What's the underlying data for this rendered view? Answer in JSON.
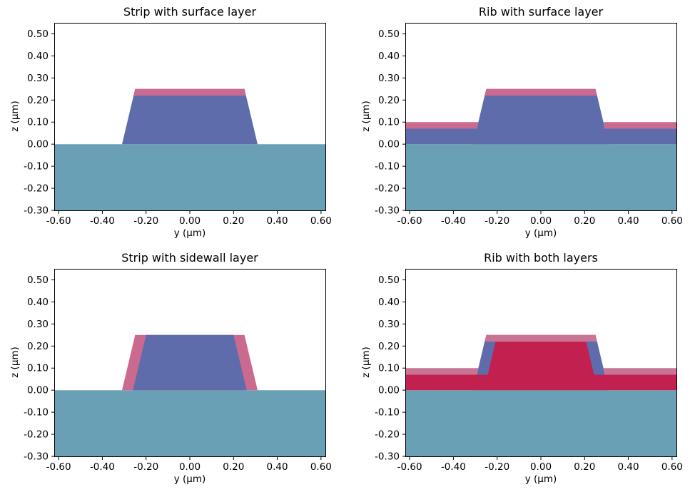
{
  "figure": {
    "background": "#ffffff",
    "colors": {
      "substrate": "#69a0b6",
      "core": "#5e6cac",
      "layer_pink": "#ca6a8e",
      "layer_crimson": "#c22150",
      "layer_pink_light": "#c97494",
      "axis": "#000000",
      "text": "#000000"
    }
  },
  "chart_data": [
    {
      "type": "area",
      "id": "strip-surface-layer",
      "title": "Strip with surface layer",
      "xlabel": "y (µm)",
      "ylabel": "z (µm)",
      "xlim": [
        -0.62,
        0.62
      ],
      "ylim": [
        -0.3,
        0.55
      ],
      "grid": false,
      "legend": "none",
      "xticks": [
        -0.6,
        -0.4,
        -0.2,
        0.0,
        0.2,
        0.4,
        0.6
      ],
      "xtick_labels": [
        "-0.60",
        "-0.40",
        "-0.20",
        "0.00",
        "0.20",
        "0.40",
        "0.60"
      ],
      "yticks": [
        0.5,
        0.4,
        0.3,
        0.2,
        0.1,
        0.0,
        -0.1,
        -0.2,
        -0.3
      ],
      "ytick_labels": [
        "0.50",
        "0.40",
        "0.30",
        "0.20",
        "0.10",
        "0.00",
        "-0.10",
        "-0.20",
        "-0.30"
      ],
      "regions": [
        {
          "name": "substrate",
          "color": "substrate",
          "points": [
            [
              -0.62,
              -0.3
            ],
            [
              0.62,
              -0.3
            ],
            [
              0.62,
              0.0
            ],
            [
              -0.62,
              0.0
            ]
          ]
        },
        {
          "name": "core",
          "color": "core",
          "points": [
            [
              -0.31,
              0.0
            ],
            [
              0.31,
              0.0
            ],
            [
              0.25,
              0.25
            ],
            [
              -0.25,
              0.25
            ]
          ]
        },
        {
          "name": "surface-layer-top",
          "color": "layer_pink",
          "points": [
            [
              -0.2572,
              0.22
            ],
            [
              0.2572,
              0.22
            ],
            [
              0.25,
              0.25
            ],
            [
              -0.25,
              0.25
            ]
          ]
        }
      ]
    },
    {
      "type": "area",
      "id": "rib-surface-layer",
      "title": "Rib with surface layer",
      "xlabel": "y (µm)",
      "ylabel": "z (µm)",
      "xlim": [
        -0.62,
        0.62
      ],
      "ylim": [
        -0.3,
        0.55
      ],
      "grid": false,
      "legend": "none",
      "xticks": [
        -0.6,
        -0.4,
        -0.2,
        0.0,
        0.2,
        0.4,
        0.6
      ],
      "xtick_labels": [
        "-0.60",
        "-0.40",
        "-0.20",
        "0.00",
        "0.20",
        "0.40",
        "0.60"
      ],
      "yticks": [
        0.5,
        0.4,
        0.3,
        0.2,
        0.1,
        0.0,
        -0.1,
        -0.2,
        -0.3
      ],
      "ytick_labels": [
        "0.50",
        "0.40",
        "0.30",
        "0.20",
        "0.10",
        "0.00",
        "-0.10",
        "-0.20",
        "-0.30"
      ],
      "regions": [
        {
          "name": "substrate",
          "color": "substrate",
          "points": [
            [
              -0.62,
              -0.3
            ],
            [
              0.62,
              -0.3
            ],
            [
              0.62,
              0.0
            ],
            [
              -0.62,
              0.0
            ]
          ]
        },
        {
          "name": "slab",
          "color": "core",
          "points": [
            [
              -0.62,
              0.0
            ],
            [
              0.62,
              0.0
            ],
            [
              0.62,
              0.07
            ],
            [
              -0.62,
              0.07
            ]
          ]
        },
        {
          "name": "core",
          "color": "core",
          "points": [
            [
              -0.31,
              0.0
            ],
            [
              0.31,
              0.0
            ],
            [
              0.25,
              0.25
            ],
            [
              -0.25,
              0.25
            ]
          ]
        },
        {
          "name": "surface-layer-slab-left",
          "color": "layer_pink",
          "points": [
            [
              -0.62,
              0.07
            ],
            [
              -0.2932,
              0.07
            ],
            [
              -0.286,
              0.1
            ],
            [
              -0.62,
              0.1
            ]
          ]
        },
        {
          "name": "surface-layer-slab-right",
          "color": "layer_pink",
          "points": [
            [
              0.2932,
              0.07
            ],
            [
              0.62,
              0.07
            ],
            [
              0.62,
              0.1
            ],
            [
              0.286,
              0.1
            ]
          ]
        },
        {
          "name": "surface-layer-top",
          "color": "layer_pink",
          "points": [
            [
              -0.2572,
              0.22
            ],
            [
              0.2572,
              0.22
            ],
            [
              0.25,
              0.25
            ],
            [
              -0.25,
              0.25
            ]
          ]
        }
      ]
    },
    {
      "type": "area",
      "id": "strip-sidewall-layer",
      "title": "Strip with sidewall layer",
      "xlabel": "y (µm)",
      "ylabel": "z (µm)",
      "xlim": [
        -0.62,
        0.62
      ],
      "ylim": [
        -0.3,
        0.55
      ],
      "grid": false,
      "legend": "none",
      "xticks": [
        -0.6,
        -0.4,
        -0.2,
        0.0,
        0.2,
        0.4,
        0.6
      ],
      "xtick_labels": [
        "-0.60",
        "-0.40",
        "-0.20",
        "0.00",
        "0.20",
        "0.40",
        "0.60"
      ],
      "yticks": [
        0.5,
        0.4,
        0.3,
        0.2,
        0.1,
        0.0,
        -0.1,
        -0.2,
        -0.3
      ],
      "ytick_labels": [
        "0.50",
        "0.40",
        "0.30",
        "0.20",
        "0.10",
        "0.00",
        "-0.10",
        "-0.20",
        "-0.30"
      ],
      "regions": [
        {
          "name": "substrate",
          "color": "substrate",
          "points": [
            [
              -0.62,
              -0.3
            ],
            [
              0.62,
              -0.3
            ],
            [
              0.62,
              0.0
            ],
            [
              -0.62,
              0.0
            ]
          ]
        },
        {
          "name": "sidewall-layer",
          "color": "layer_pink",
          "points": [
            [
              -0.31,
              0.0
            ],
            [
              0.31,
              0.0
            ],
            [
              0.25,
              0.25
            ],
            [
              -0.25,
              0.25
            ]
          ]
        },
        {
          "name": "core",
          "color": "core",
          "points": [
            [
              -0.26,
              0.0
            ],
            [
              0.26,
              0.0
            ],
            [
              0.2,
              0.25
            ],
            [
              -0.2,
              0.25
            ]
          ]
        }
      ]
    },
    {
      "type": "area",
      "id": "rib-both-layers",
      "title": "Rib with both layers",
      "xlabel": "y (µm)",
      "ylabel": "z (µm)",
      "xlim": [
        -0.62,
        0.62
      ],
      "ylim": [
        -0.3,
        0.55
      ],
      "grid": false,
      "legend": "none",
      "xticks": [
        -0.6,
        -0.4,
        -0.2,
        0.0,
        0.2,
        0.4,
        0.6
      ],
      "xtick_labels": [
        "-0.60",
        "-0.40",
        "-0.20",
        "0.00",
        "0.20",
        "0.40",
        "0.60"
      ],
      "yticks": [
        0.5,
        0.4,
        0.3,
        0.2,
        0.1,
        0.0,
        -0.1,
        -0.2,
        -0.3
      ],
      "ytick_labels": [
        "0.50",
        "0.40",
        "0.30",
        "0.20",
        "0.10",
        "0.00",
        "-0.10",
        "-0.20",
        "-0.30"
      ],
      "regions": [
        {
          "name": "substrate",
          "color": "substrate",
          "points": [
            [
              -0.62,
              -0.3
            ],
            [
              0.62,
              -0.3
            ],
            [
              0.62,
              0.0
            ],
            [
              -0.62,
              0.0
            ]
          ]
        },
        {
          "name": "core",
          "color": "core",
          "points": [
            [
              -0.31,
              0.0
            ],
            [
              0.31,
              0.0
            ],
            [
              0.25,
              0.25
            ],
            [
              -0.25,
              0.25
            ]
          ]
        },
        {
          "name": "sidewall-layer-slab",
          "color": "layer_crimson",
          "points": [
            [
              -0.62,
              0.0
            ],
            [
              0.62,
              0.0
            ],
            [
              0.62,
              0.07
            ],
            [
              -0.62,
              0.07
            ]
          ]
        },
        {
          "name": "sidewall-layer-core",
          "color": "layer_crimson",
          "points": [
            [
              -0.2432,
              0.07
            ],
            [
              0.2432,
              0.07
            ],
            [
              0.2072,
              0.22
            ],
            [
              -0.2072,
              0.22
            ]
          ]
        },
        {
          "name": "surface-layer-slab-left",
          "color": "layer_pink_light",
          "points": [
            [
              -0.62,
              0.07
            ],
            [
              -0.2932,
              0.07
            ],
            [
              -0.286,
              0.1
            ],
            [
              -0.62,
              0.1
            ]
          ]
        },
        {
          "name": "surface-layer-slab-right",
          "color": "layer_pink_light",
          "points": [
            [
              0.2932,
              0.07
            ],
            [
              0.62,
              0.07
            ],
            [
              0.62,
              0.1
            ],
            [
              0.286,
              0.1
            ]
          ]
        },
        {
          "name": "surface-layer-top",
          "color": "layer_pink_light",
          "points": [
            [
              -0.2572,
              0.22
            ],
            [
              0.2572,
              0.22
            ],
            [
              0.25,
              0.25
            ],
            [
              -0.25,
              0.25
            ]
          ]
        }
      ]
    }
  ]
}
